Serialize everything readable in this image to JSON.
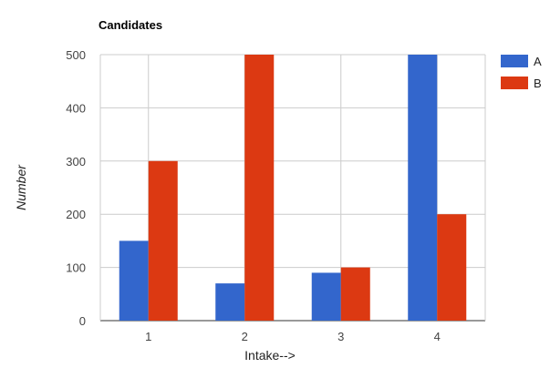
{
  "chart_data": {
    "type": "bar",
    "title": "Candidates",
    "xlabel": "Intake-->",
    "ylabel": "Number",
    "categories": [
      "1",
      "2",
      "3",
      "4"
    ],
    "series": [
      {
        "name": "A",
        "color": "#3366cc",
        "values": [
          150,
          70,
          90,
          500
        ]
      },
      {
        "name": "B",
        "color": "#dc3912",
        "values": [
          300,
          500,
          100,
          200
        ]
      }
    ],
    "ylim": [
      0,
      500
    ],
    "yticks": [
      0,
      100,
      200,
      300,
      400,
      500
    ],
    "grid": true,
    "legend": "right"
  }
}
